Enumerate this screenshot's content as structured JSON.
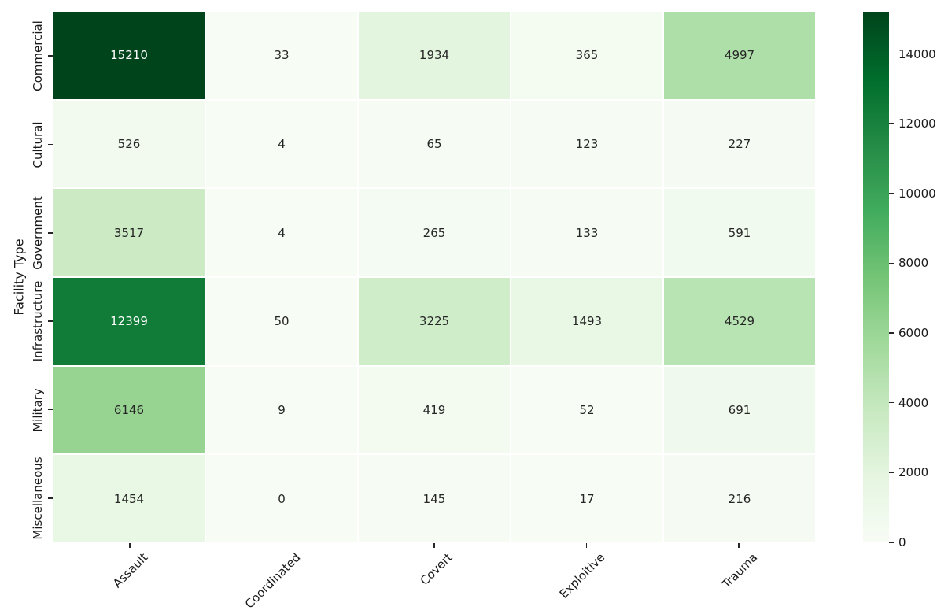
{
  "chart_data": {
    "type": "heatmap",
    "title": "",
    "xlabel": "",
    "ylabel": "Facility Type",
    "columns": [
      "Assault",
      "Coordinated",
      "Covert",
      "Exploitive",
      "Trauma"
    ],
    "rows": [
      "Commercial",
      "Cultural",
      "Government",
      "Infrastructure",
      "Military",
      "Miscellaneous"
    ],
    "values": [
      [
        15210,
        33,
        1934,
        365,
        4997
      ],
      [
        526,
        4,
        65,
        123,
        227
      ],
      [
        3517,
        4,
        265,
        133,
        591
      ],
      [
        12399,
        50,
        3225,
        1493,
        4529
      ],
      [
        6146,
        9,
        419,
        52,
        691
      ],
      [
        1454,
        0,
        145,
        17,
        216
      ]
    ],
    "vmin": 0,
    "vmax": 15210,
    "colormap_name": "Greens",
    "colormap_stops": [
      "#f7fcf5",
      "#e5f5e0",
      "#c7e9c0",
      "#a1d99b",
      "#74c476",
      "#41ab5d",
      "#238b45",
      "#006d2c",
      "#00441b"
    ],
    "grid_line_color": "#ffffff",
    "annot_color_dark": "#262626",
    "annot_color_light": "#ffffff",
    "colorbar": {
      "position": "right",
      "ticks": [
        0,
        2000,
        4000,
        6000,
        8000,
        10000,
        12000,
        14000
      ]
    },
    "axes": {
      "grid": false,
      "x_tick_rotation_deg": -45,
      "y_tick_rotation_deg": -90
    },
    "background_color": "#ffffff"
  }
}
